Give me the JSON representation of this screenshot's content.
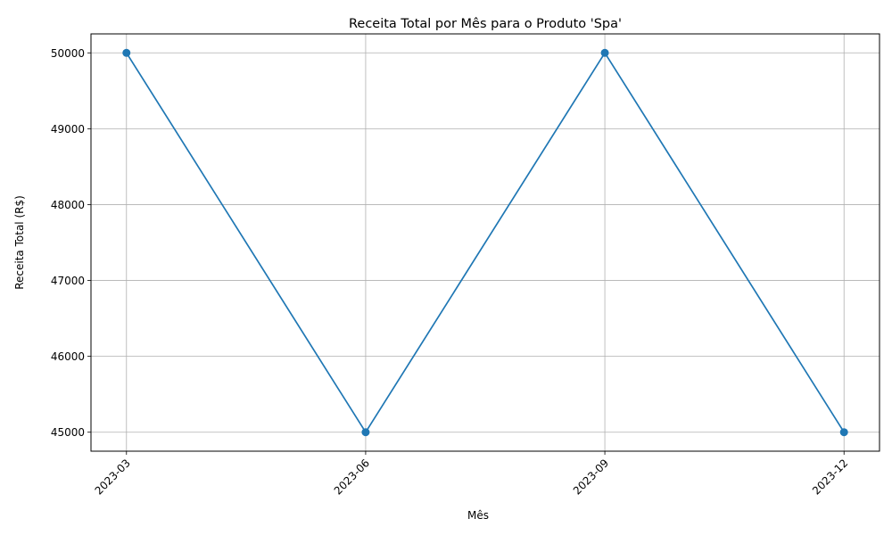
{
  "chart_data": {
    "type": "line",
    "title": "Receita Total por Mês para o Produto 'Spa'",
    "xlabel": "Mês",
    "ylabel": "Receita Total (R$)",
    "categories": [
      "2023-03",
      "2023-06",
      "2023-09",
      "2023-12"
    ],
    "series": [
      {
        "values": [
          50000,
          45000,
          50000,
          45000
        ],
        "color": "#1f77b4",
        "marker": "circle"
      }
    ],
    "yticks": [
      45000,
      46000,
      47000,
      48000,
      49000,
      50000
    ],
    "ylim": [
      44750,
      50250
    ],
    "grid": true,
    "x_tick_rotation": 45
  }
}
